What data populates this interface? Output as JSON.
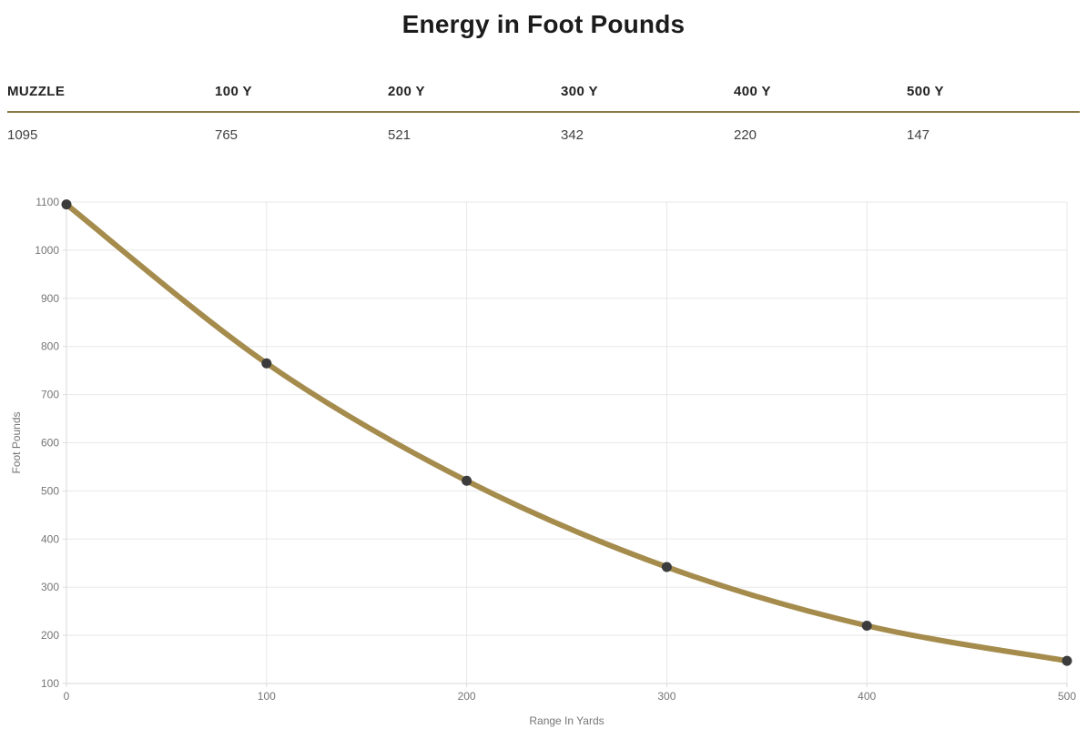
{
  "title": "Energy in Foot Pounds",
  "table": {
    "headers": [
      "MUZZLE",
      "100 Y",
      "200 Y",
      "300 Y",
      "400 Y",
      "500 Y"
    ],
    "values": [
      "1095",
      "765",
      "521",
      "342",
      "220",
      "147"
    ]
  },
  "chart_data": {
    "type": "line",
    "title": "Energy in Foot Pounds",
    "x": [
      0,
      100,
      200,
      300,
      400,
      500
    ],
    "values": [
      1095,
      765,
      521,
      342,
      220,
      147
    ],
    "xlabel": "Range In Yards",
    "ylabel": "Foot Pounds",
    "xlim": [
      0,
      500
    ],
    "ylim": [
      100,
      1100
    ],
    "x_tick_step": 100,
    "y_tick_step": 100,
    "grid": true,
    "legend_position": "none"
  },
  "colors": {
    "line_gold": "#a58c4d",
    "rule_gold": "#8a7a4a",
    "point_dark": "#3c3c3c",
    "grid_light": "#e8e8e8",
    "axis_line": "#dadada",
    "axis_text": "#757575",
    "title_text": "#1c1c1c",
    "value_text": "#404040"
  }
}
